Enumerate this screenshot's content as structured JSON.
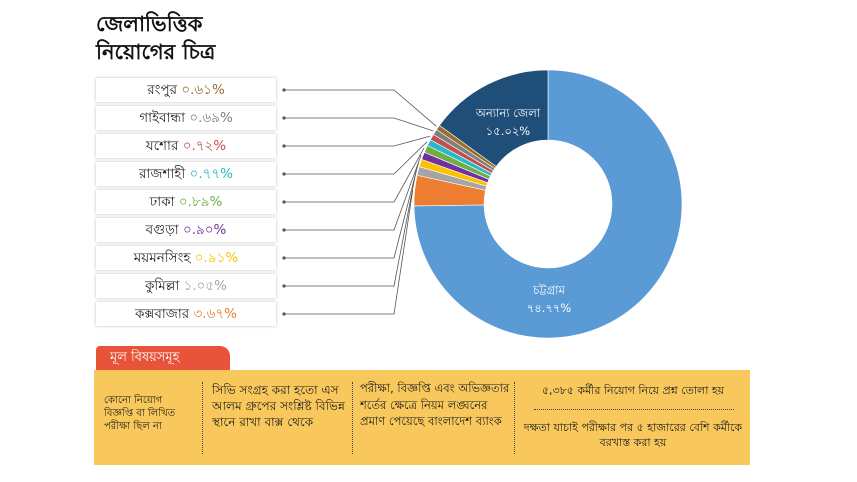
{
  "title_lines": [
    "জেলাভিত্তিক",
    "নিয়োগের চিত্র"
  ],
  "chart_data": {
    "type": "pie",
    "title": "জেলাভিত্তিক নিয়োগের চিত্র",
    "slices": [
      {
        "name": "চট্টগ্রাম",
        "value": 74.77,
        "label": "৭৪.৭৭%",
        "color": "#5b9bd5"
      },
      {
        "name": "কক্সবাজার",
        "value": 3.67,
        "label": "৩.৬৭%",
        "color": "#ed7d31"
      },
      {
        "name": "কুমিল্লা",
        "value": 1.05,
        "label": "১.০৫%",
        "color": "#a5a5a5"
      },
      {
        "name": "ময়মনসিংহ",
        "value": 0.91,
        "label": "০.৯১%",
        "color": "#ffc000"
      },
      {
        "name": "বগুড়া",
        "value": 0.9,
        "label": "০.৯০%",
        "color": "#7030a0"
      },
      {
        "name": "ঢাকা",
        "value": 0.89,
        "label": "০.৮৯%",
        "color": "#70ad47"
      },
      {
        "name": "রাজশাহী",
        "value": 0.77,
        "label": "০.৭৭%",
        "color": "#2ab7c9"
      },
      {
        "name": "যশোর",
        "value": 0.72,
        "label": "০.৭২%",
        "color": "#c0504d"
      },
      {
        "name": "গাইবান্ধা",
        "value": 0.69,
        "label": "০.৬৯%",
        "color": "#7f7f7f"
      },
      {
        "name": "রংপুর",
        "value": 0.61,
        "label": "০.৬১%",
        "color": "#9c6b2e"
      },
      {
        "name": "অন্যান্য জেলা",
        "value": 15.02,
        "label": "১৫.০২%",
        "color": "#1f4e79"
      }
    ],
    "legend": [
      {
        "name": "রংপুর",
        "value": "০.৬১%",
        "color": "#9c6b2e"
      },
      {
        "name": "গাইবান্ধা",
        "value": "০.৬৯%",
        "color": "#7f7f7f"
      },
      {
        "name": "যশোর",
        "value": "০.৭২%",
        "color": "#c0504d"
      },
      {
        "name": "রাজশাহী",
        "value": "০.৭৭%",
        "color": "#2ab7c9"
      },
      {
        "name": "ঢাকা",
        "value": "০.৮৯%",
        "color": "#70ad47"
      },
      {
        "name": "বগুড়া",
        "value": "০.৯০%",
        "color": "#7030a0"
      },
      {
        "name": "ময়মনসিংহ",
        "value": "০.৯১%",
        "color": "#ffc000"
      },
      {
        "name": "কুমিল্লা",
        "value": "১.০৫%",
        "color": "#a5a5a5"
      },
      {
        "name": "কক্সবাজার",
        "value": "৩.৬৭%",
        "color": "#ed7d31"
      }
    ]
  },
  "section": {
    "title": "মূল বিষয়সমূহ"
  },
  "facts": {
    "item1": "কোনো নিয়োগ বিজ্ঞপ্তি বা লিখিত পরীক্ষা ছিল না",
    "item2": "সিভি সংগ্রহ করা হতো এস আলম গ্রুপের সংশ্লিষ্ট বিভিন্ন স্থানে রাখা বাক্স থেকে",
    "item3": "পরীক্ষা, বিজ্ঞপ্তি এবং অভিজ্ঞতার শর্তের ক্ষেত্রে নিয়ম লঙ্ঘনের প্রমাণ পেয়েছে বাংলাদেশ ব্যাংক",
    "item4": "৫,৩৮৫ কর্মীর নিয়োগ নিয়ে প্রশ্ন তোলা হয়",
    "item5": "দক্ষতা যাচাই পরীক্ষার পর ৫ হাজারের বেশি কর্মীকে বরখাস্ত করা হয়"
  }
}
